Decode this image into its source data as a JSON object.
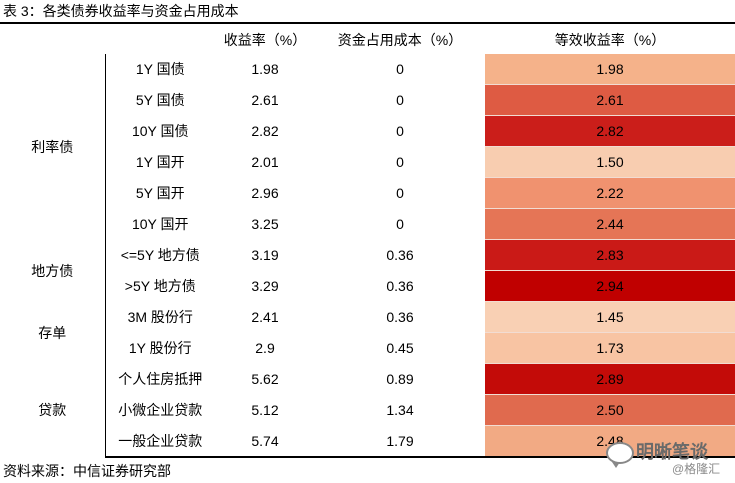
{
  "title": "表 3：各类债券收益率与资金占用成本",
  "headers": [
    "",
    "",
    "收益率（%）",
    "资金占用成本（%）",
    "等效收益率（%）"
  ],
  "groups": [
    {
      "category": "利率债",
      "rows": [
        {
          "item": "1Y 国债",
          "yield": "1.98",
          "cost": "0",
          "equiv": "1.98",
          "color": "#f5b28a"
        },
        {
          "item": "5Y 国债",
          "yield": "2.61",
          "cost": "0",
          "equiv": "2.61",
          "color": "#de5b43"
        },
        {
          "item": "10Y 国债",
          "yield": "2.82",
          "cost": "0",
          "equiv": "2.82",
          "color": "#cb1e1a"
        },
        {
          "item": "1Y 国开",
          "yield": "2.01",
          "cost": "0",
          "equiv": "1.50",
          "color": "#f8cdb0"
        },
        {
          "item": "5Y 国开",
          "yield": "2.96",
          "cost": "0",
          "equiv": "2.22",
          "color": "#f0926f"
        },
        {
          "item": "10Y 国开",
          "yield": "3.25",
          "cost": "0",
          "equiv": "2.44",
          "color": "#e57556"
        }
      ]
    },
    {
      "category": "地方债",
      "rows": [
        {
          "item": "<=5Y 地方债",
          "yield": "3.19",
          "cost": "0.36",
          "equiv": "2.83",
          "color": "#ca1a17"
        },
        {
          "item": ">5Y 地方债",
          "yield": "3.29",
          "cost": "0.36",
          "equiv": "2.94",
          "color": "#c00000"
        }
      ]
    },
    {
      "category": "存单",
      "rows": [
        {
          "item": "3M 股份行",
          "yield": "2.41",
          "cost": "0.36",
          "equiv": "1.45",
          "color": "#f9d0b4"
        },
        {
          "item": "1Y 股份行",
          "yield": "2.9",
          "cost": "0.45",
          "equiv": "1.73",
          "color": "#f8c4a3"
        }
      ]
    },
    {
      "category": "贷款",
      "rows": [
        {
          "item": "个人住房抵押",
          "yield": "5.62",
          "cost": "0.89",
          "equiv": "2.89",
          "color": "#c30b08"
        },
        {
          "item": "小微企业贷款",
          "yield": "5.12",
          "cost": "1.34",
          "equiv": "2.50",
          "color": "#e06a4e"
        },
        {
          "item": "一般企业贷款",
          "yield": "5.74",
          "cost": "1.79",
          "equiv": "2.48",
          "color": "#f2aa84"
        }
      ]
    }
  ],
  "source": "资料来源：中信证券研究部",
  "watermark": {
    "name": "明晰笔谈",
    "handle": "@格隆汇",
    "icon": "wechat-icon"
  }
}
